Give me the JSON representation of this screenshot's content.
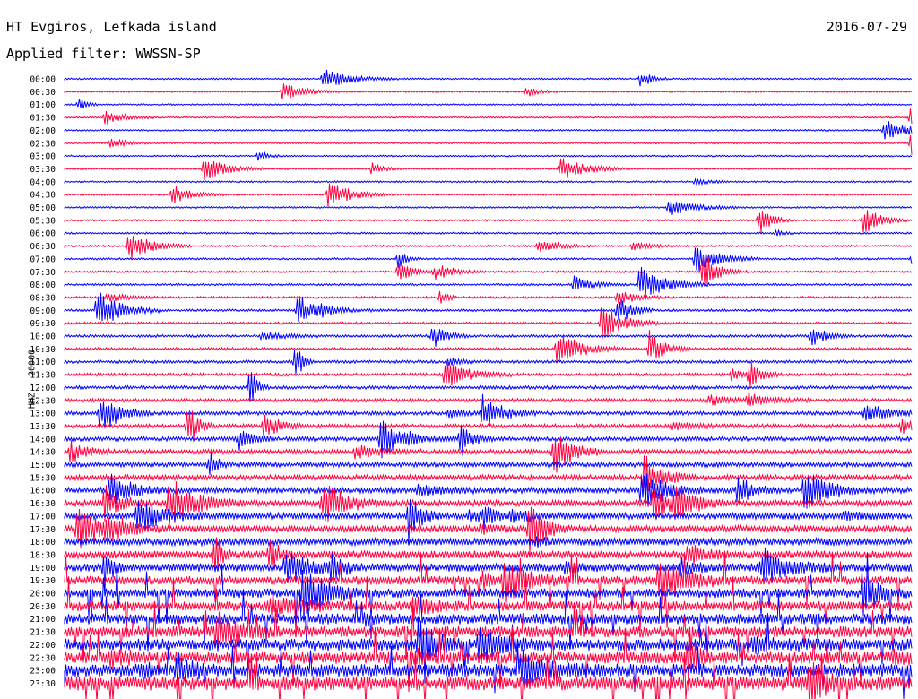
{
  "header": {
    "station": "HT Evgiros, Lefkada island",
    "date": "2016-07-29",
    "filter": "Applied filter: WWSSN-SP"
  },
  "chart_data": {
    "type": "line",
    "ylabel": "HHZ - 20000",
    "tick_labels": [
      "00:00",
      "00:30",
      "01:00",
      "01:30",
      "02:00",
      "02:30",
      "03:00",
      "03:30",
      "04:00",
      "04:30",
      "05:00",
      "05:30",
      "06:00",
      "06:30",
      "07:00",
      "07:30",
      "08:00",
      "08:30",
      "09:00",
      "09:30",
      "10:00",
      "10:30",
      "11:00",
      "11:30",
      "12:00",
      "12:30",
      "13:00",
      "13:30",
      "14:00",
      "14:30",
      "15:00",
      "15:30",
      "16:00",
      "16:30",
      "17:00",
      "17:30",
      "18:00",
      "18:30",
      "19:00",
      "19:30",
      "20:00",
      "20:30",
      "21:00",
      "21:30",
      "22:00",
      "22:30",
      "23:00",
      "23:30"
    ],
    "trace_colors": [
      "#0000ff",
      "#ff0040"
    ]
  }
}
